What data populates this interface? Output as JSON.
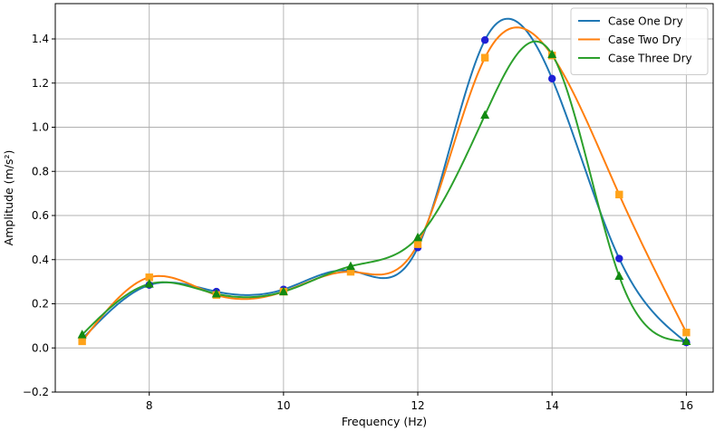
{
  "chart_data": {
    "type": "line",
    "xlabel": "Frequency (Hz)",
    "ylabel": "Amplitude (m/s²)",
    "xlim": [
      6.6,
      16.4
    ],
    "ylim": [
      -0.2,
      1.56
    ],
    "xticks": [
      8,
      10,
      12,
      14,
      16
    ],
    "yticks": [
      -0.2,
      0.0,
      0.2,
      0.4,
      0.6,
      0.8,
      1.0,
      1.2,
      1.4
    ],
    "xtick_labels": [
      "8",
      "10",
      "12",
      "14",
      "16"
    ],
    "ytick_labels": [
      "−0.2",
      "0.0",
      "0.2",
      "0.4",
      "0.6",
      "0.8",
      "1.0",
      "1.2",
      "1.4"
    ],
    "grid": true,
    "legend_position": "top-right",
    "series": [
      {
        "name": "Case One Dry",
        "color": "#1f77b4",
        "marker": "circle",
        "marker_color": "#1f1fd6",
        "x": [
          7,
          8,
          9,
          10,
          11,
          12,
          13,
          14,
          15,
          16
        ],
        "y": [
          0.04,
          0.285,
          0.255,
          0.265,
          0.35,
          0.455,
          1.395,
          1.22,
          0.405,
          0.025
        ]
      },
      {
        "name": "Case Two Dry",
        "color": "#ff7f0e",
        "marker": "square",
        "marker_color": "#ffa31a",
        "x": [
          7,
          8,
          9,
          10,
          11,
          12,
          13,
          14,
          15,
          16
        ],
        "y": [
          0.03,
          0.32,
          0.24,
          0.255,
          0.345,
          0.47,
          1.315,
          1.325,
          0.695,
          0.07
        ]
      },
      {
        "name": "Case Three Dry",
        "color": "#2ca02c",
        "marker": "triangle",
        "marker_color": "#128a12",
        "x": [
          7,
          8,
          9,
          10,
          11,
          12,
          13,
          14,
          15,
          16
        ],
        "y": [
          0.06,
          0.29,
          0.245,
          0.255,
          0.37,
          0.5,
          1.055,
          1.33,
          0.325,
          0.03
        ]
      }
    ]
  }
}
